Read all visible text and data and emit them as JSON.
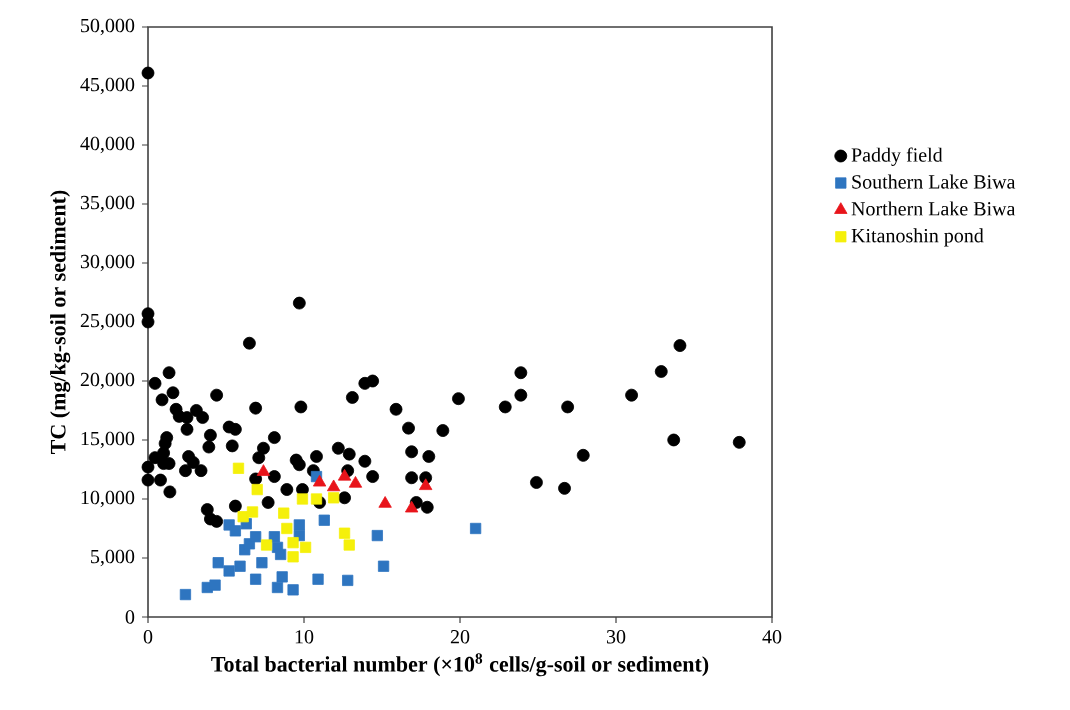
{
  "chart_data": {
    "type": "scatter",
    "xlabel": "Total bacterial number (×10$^{8}$ cells/g-soil or sediment)",
    "ylabel": "TC (mg/kg-soil or sediment)",
    "xlim": [
      0,
      40
    ],
    "ylim": [
      0,
      50000
    ],
    "xticks": [
      0,
      10,
      20,
      30,
      40
    ],
    "yticks": [
      {
        "value": 0,
        "label": "0"
      },
      {
        "value": 5000,
        "label": "5,000"
      },
      {
        "value": 10000,
        "label": "10,000"
      },
      {
        "value": 15000,
        "label": "15,000"
      },
      {
        "value": 20000,
        "label": "20,000"
      },
      {
        "value": 25000,
        "label": "25,000"
      },
      {
        "value": 30000,
        "label": "30,000"
      },
      {
        "value": 35000,
        "label": "35,000"
      },
      {
        "value": 40000,
        "label": "40,000"
      },
      {
        "value": 45000,
        "label": "45,000"
      },
      {
        "value": 50000,
        "label": "50,000"
      }
    ],
    "grid": false,
    "legend": "right",
    "series": [
      {
        "name": "Paddy field",
        "color": "#000000",
        "marker": "circle",
        "x": [
          0,
          0,
          0,
          6.5,
          1.35,
          0.45,
          1.6,
          0.9,
          4.4,
          6.9,
          9.8,
          1.8,
          2.0,
          2.5,
          3.1,
          3.5,
          2.5,
          5.2,
          5.6,
          4.0,
          8.1,
          1.2,
          1.1,
          3.9,
          5.4,
          7.4,
          1.0,
          0.45,
          1.0,
          1.35,
          2.6,
          2.9,
          7.1,
          0,
          2.4,
          3.4,
          9.5,
          9.7,
          10.8,
          0,
          0.8,
          1.4,
          6.9,
          8.1,
          10.6,
          8.9,
          9.9,
          11.0,
          7.7,
          5.6,
          3.8,
          4.0,
          4.4,
          9.7,
          13.9,
          14.4,
          13.1,
          19.9,
          22.9,
          15.9,
          16.7,
          18.9,
          12.2,
          12.9,
          13.9,
          16.9,
          18.0,
          12.8,
          14.4,
          16.9,
          17.8,
          12.6,
          17.2,
          17.9,
          34.1,
          32.9,
          23.9,
          23.9,
          26.9,
          31.0,
          33.7,
          37.9,
          27.9,
          24.9,
          26.7
        ],
        "values": [
          46100,
          25700,
          25000,
          23200,
          20700,
          19800,
          19000,
          18400,
          18800,
          17700,
          17800,
          17600,
          17000,
          16900,
          17500,
          16900,
          15900,
          16100,
          15900,
          15400,
          15200,
          15200,
          14700,
          14400,
          14500,
          14300,
          13900,
          13500,
          13000,
          13000,
          13600,
          13100,
          13500,
          12700,
          12400,
          12400,
          13300,
          12900,
          13600,
          11600,
          11600,
          10600,
          11700,
          11900,
          12400,
          10800,
          10800,
          9700,
          9700,
          9400,
          9100,
          8300,
          8100,
          26600,
          19800,
          20000,
          18600,
          18500,
          17800,
          17600,
          16000,
          15800,
          14300,
          13800,
          13200,
          14000,
          13600,
          12400,
          11900,
          11800,
          11800,
          10100,
          9700,
          9300,
          23000,
          20800,
          20700,
          18800,
          17800,
          18800,
          15000,
          14800,
          13700,
          11400,
          10900
        ]
      },
      {
        "name": "Southern Lake Biwa",
        "color": "#2e75c0",
        "marker": "square",
        "x": [
          2.4,
          3.8,
          4.3,
          4.5,
          5.2,
          5.9,
          6.9,
          7.3,
          8.6,
          8.3,
          9.3,
          10.9,
          5.2,
          5.6,
          6.3,
          6.2,
          6.5,
          6.9,
          8.1,
          8.3,
          8.5,
          9.7,
          9.7,
          11.3,
          10.8,
          14.7,
          15.1,
          12.8,
          21.0
        ],
        "values": [
          1900,
          2500,
          2700,
          4600,
          3900,
          4300,
          3200,
          4600,
          3400,
          2500,
          2300,
          3200,
          7800,
          7300,
          7900,
          5700,
          6200,
          6800,
          6800,
          5900,
          5300,
          7800,
          6900,
          8200,
          11900,
          6900,
          4300,
          3100,
          7500
        ]
      },
      {
        "name": "Northern Lake Biwa",
        "color": "#e8141b",
        "marker": "triangle",
        "x": [
          7.4,
          11.0,
          11.9,
          12.6,
          13.3,
          15.2,
          16.9,
          17.8
        ],
        "values": [
          12300,
          11400,
          11000,
          11900,
          11300,
          9600,
          9200,
          11100
        ]
      },
      {
        "name": "Kitanoshin pond",
        "color": "#f5f00a",
        "marker": "square",
        "x": [
          5.8,
          7.0,
          6.1,
          6.7,
          8.7,
          8.9,
          7.6,
          9.3,
          10.1,
          9.3,
          9.9,
          10.8,
          11.9,
          12.6,
          12.9
        ],
        "values": [
          12600,
          10800,
          8500,
          8900,
          8800,
          7500,
          6100,
          6300,
          5900,
          5100,
          10000,
          10000,
          10100,
          7100,
          6100
        ]
      }
    ]
  }
}
